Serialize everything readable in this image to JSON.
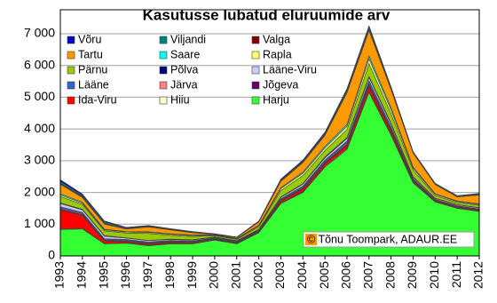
{
  "chart_data": {
    "type": "stacked-area",
    "title": "Kasutusse lubatud eluruumide arv",
    "annotation": "© Tõnu Toompark, ADAUR.EE",
    "categories": [
      "1993",
      "1994",
      "1995",
      "1996",
      "1997",
      "1998",
      "1999",
      "2000",
      "2001",
      "2002",
      "2003",
      "2004",
      "2005",
      "2006",
      "2007",
      "2008",
      "2009",
      "2010",
      "2011",
      "2012"
    ],
    "ylim": [
      0,
      7000
    ],
    "yticks": [
      0,
      {
        "value": 1000,
        "label": "1 000"
      },
      {
        "value": 2000,
        "label": "2 000"
      },
      {
        "value": 3000,
        "label": "3 000"
      },
      {
        "value": 4000,
        "label": "4 000"
      },
      {
        "value": 5000,
        "label": "5 000"
      },
      {
        "value": 6000,
        "label": "6 000"
      },
      {
        "value": 7000,
        "label": "7 000"
      }
    ],
    "grid": true,
    "legend": "top-left",
    "series": [
      {
        "name": "Võru",
        "color": "#0000cc",
        "values": [
          50,
          40,
          30,
          20,
          20,
          10,
          10,
          5,
          5,
          10,
          30,
          30,
          40,
          40,
          50,
          30,
          20,
          10,
          10,
          10
        ]
      },
      {
        "name": "Viljandi",
        "color": "#008080",
        "values": [
          60,
          40,
          50,
          20,
          20,
          20,
          20,
          10,
          5,
          10,
          20,
          30,
          40,
          60,
          70,
          40,
          20,
          20,
          20,
          30
        ]
      },
      {
        "name": "Valga",
        "color": "#800000",
        "values": [
          30,
          30,
          20,
          10,
          10,
          10,
          10,
          5,
          5,
          10,
          20,
          20,
          20,
          30,
          30,
          20,
          10,
          10,
          10,
          10
        ]
      },
      {
        "name": "Tartu",
        "color": "#ff9900",
        "values": [
          300,
          150,
          160,
          80,
          150,
          120,
          70,
          10,
          30,
          100,
          200,
          300,
          350,
          1000,
          800,
          570,
          440,
          290,
          130,
          280
        ]
      },
      {
        "name": "Saare",
        "color": "#00ffff",
        "values": [
          40,
          30,
          20,
          20,
          20,
          20,
          20,
          10,
          10,
          20,
          30,
          40,
          50,
          60,
          90,
          70,
          40,
          20,
          20,
          20
        ]
      },
      {
        "name": "Rapla",
        "color": "#ffff66",
        "values": [
          50,
          40,
          30,
          30,
          30,
          30,
          30,
          20,
          20,
          30,
          60,
          70,
          80,
          100,
          150,
          120,
          60,
          40,
          30,
          30
        ]
      },
      {
        "name": "Pärnu",
        "color": "#99cc00",
        "values": [
          200,
          150,
          150,
          150,
          220,
          120,
          100,
          40,
          40,
          80,
          200,
          250,
          200,
          250,
          400,
          300,
          200,
          80,
          60,
          70
        ]
      },
      {
        "name": "Põlva",
        "color": "#000080",
        "values": [
          20,
          20,
          20,
          10,
          10,
          10,
          10,
          10,
          10,
          10,
          20,
          20,
          30,
          30,
          40,
          30,
          20,
          10,
          10,
          10
        ]
      },
      {
        "name": "Lääne-Viru",
        "color": "#ccccff",
        "values": [
          100,
          80,
          80,
          40,
          40,
          30,
          30,
          20,
          20,
          20,
          40,
          60,
          70,
          80,
          100,
          80,
          40,
          30,
          30,
          30
        ]
      },
      {
        "name": "Lääne",
        "color": "#3366cc",
        "values": [
          40,
          40,
          30,
          30,
          30,
          20,
          20,
          20,
          20,
          20,
          30,
          40,
          50,
          60,
          80,
          60,
          40,
          20,
          20,
          20
        ]
      },
      {
        "name": "Järva",
        "color": "#ff8080",
        "values": [
          30,
          30,
          20,
          20,
          20,
          20,
          20,
          10,
          10,
          10,
          20,
          30,
          30,
          40,
          50,
          40,
          20,
          10,
          10,
          10
        ]
      },
      {
        "name": "Jõgeva",
        "color": "#660066",
        "values": [
          30,
          30,
          20,
          20,
          20,
          20,
          10,
          10,
          10,
          10,
          20,
          30,
          30,
          40,
          50,
          40,
          20,
          10,
          10,
          10
        ]
      },
      {
        "name": "Ida-Viru",
        "color": "#ff0000",
        "values": [
          600,
          400,
          80,
          40,
          40,
          40,
          30,
          20,
          20,
          30,
          60,
          80,
          80,
          100,
          150,
          100,
          40,
          30,
          30,
          30
        ]
      },
      {
        "name": "Hiiu",
        "color": "#ffffcc",
        "values": [
          20,
          20,
          10,
          10,
          10,
          10,
          10,
          10,
          10,
          10,
          20,
          20,
          30,
          30,
          40,
          30,
          20,
          10,
          10,
          10
        ]
      },
      {
        "name": "Harju",
        "color": "#33ff33",
        "values": [
          830,
          850,
          380,
          400,
          320,
          380,
          380,
          500,
          380,
          730,
          1650,
          2000,
          2800,
          3350,
          5150,
          3800,
          2300,
          1700,
          1500,
          1400
        ]
      }
    ]
  }
}
